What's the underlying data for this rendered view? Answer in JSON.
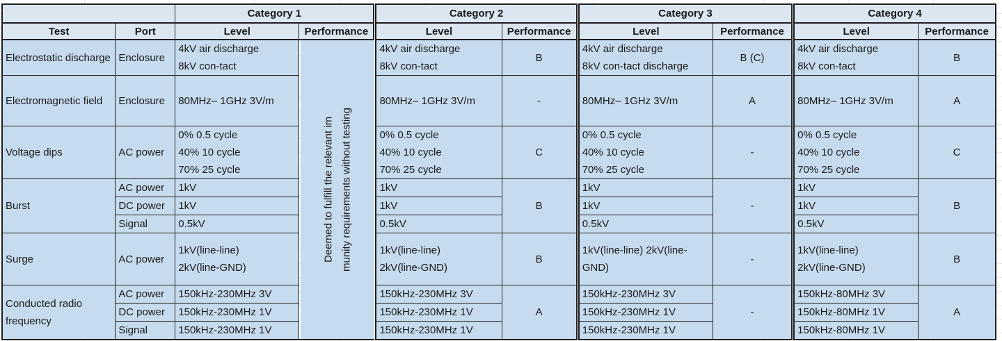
{
  "header": {
    "corner": "",
    "categories": [
      "Category 1",
      "Category 2",
      "Category 3",
      "Category 4"
    ],
    "subheaders": {
      "test": "Test",
      "port": "Port",
      "level": "Level",
      "performance": "Performance"
    }
  },
  "category1_note": "Deemed to fulfill the relevant im\nmunity requirements without testing",
  "rows": [
    {
      "test": "Electrostatic discharge",
      "port": "Enclosure",
      "c1": "4kV air discharge\n8kV con-tact",
      "c2": "4kV air discharge\n8kV con-tact",
      "p2": "B",
      "c3": "4kV air discharge\n8kV con-tact discharge",
      "p3": "B (C)",
      "c4": "4kV air discharge\n8kV con-tact",
      "p4": "B"
    },
    {
      "test": "Electromagnetic field",
      "port": "Enclosure",
      "c1": "80MHz– 1GHz 3V/m",
      "c2": "80MHz– 1GHz 3V/m",
      "p2": "-",
      "c3": "80MHz– 1GHz 3V/m",
      "p3": "A",
      "c4": "80MHz– 1GHz 3V/m",
      "p4": "A"
    },
    {
      "test": "Voltage dips",
      "port": "AC power",
      "c1": "0% 0.5 cycle\n40% 10 cycle\n70% 25 cycle",
      "c2": "0% 0.5 cycle\n40% 10 cycle\n70% 25 cycle",
      "p2": "C",
      "c3": "0% 0.5 cycle\n40% 10 cycle\n70% 25 cycle",
      "p3": "-",
      "c4": "0% 0.5 cycle\n40% 10 cycle\n70% 25 cycle",
      "p4": "C"
    },
    {
      "test": "Burst",
      "subrows": [
        {
          "port": "AC power",
          "c1": "1kV",
          "c2": "1kV",
          "c3": "1kV",
          "c4": "1kV"
        },
        {
          "port": "DC power",
          "c1": "1kV",
          "c2": "1kV",
          "c3": "1kV",
          "c4": "1kV"
        },
        {
          "port": "Signal",
          "c1": "0.5kV",
          "c2": "0.5kV",
          "c3": "0.5kV",
          "c4": "0.5kV"
        }
      ],
      "p2": "B",
      "p3": "-",
      "p4": "B"
    },
    {
      "test": "Surge",
      "port": "AC power",
      "c1": "1kV(line-line)\n2kV(line-GND)",
      "c2": "1kV(line-line)\n2kV(line-GND)",
      "p2": "B",
      "c3": "1kV(line-line) 2kV(line-GND)",
      "p3": "-",
      "c4": "1kV(line-line)\n2kV(line-GND)",
      "p4": "B"
    },
    {
      "test": "Conducted radio frequency",
      "subrows": [
        {
          "port": "AC power",
          "c1": "150kHz-230MHz 3V",
          "c2": "150kHz-230MHz 3V",
          "c3": "150kHz-230MHz 3V",
          "c4": "150kHz-80MHz 3V"
        },
        {
          "port": "DC power",
          "c1": "150kHz-230MHz 1V",
          "c2": "150kHz-230MHz 1V",
          "c3": "150kHz-230MHz 1V",
          "c4": "150kHz-80MHz 1V"
        },
        {
          "port": "Signal",
          "c1": "150kHz-230MHz 1V",
          "c2": "150kHz-230MHz 1V",
          "c3": "150kHz-230MHz 1V",
          "c4": "150kHz-80MHz 1V"
        }
      ],
      "p2": "A",
      "p3": "-",
      "p4": "A"
    }
  ],
  "colors": {
    "header_bg": "#dce6f1",
    "cell_bg": "#c6dbee",
    "border": "#1f1f1f"
  }
}
